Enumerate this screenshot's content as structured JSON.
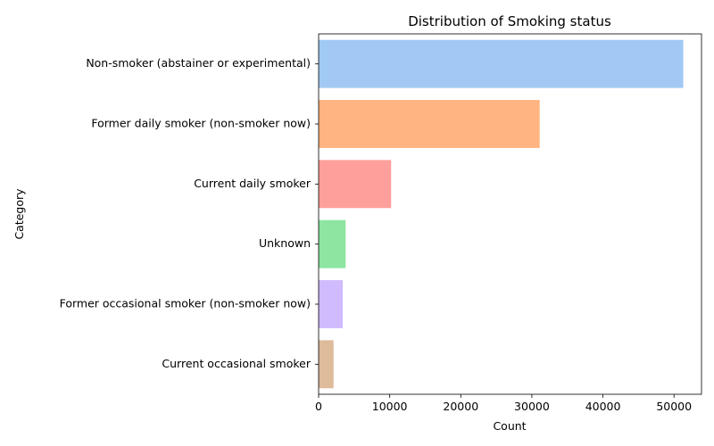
{
  "chart_data": {
    "type": "bar",
    "orientation": "horizontal",
    "title": "Distribution of Smoking status",
    "xlabel": "Count",
    "ylabel": "Category",
    "categories": [
      "Non-smoker (abstainer or experimental)",
      "Former daily smoker (non-smoker now)",
      "Current daily smoker",
      "Unknown",
      "Former occasional smoker (non-smoker now)",
      "Current occasional smoker"
    ],
    "values": [
      51300,
      31100,
      10200,
      3800,
      3400,
      2100
    ],
    "colors": [
      "#a1c9f4",
      "#ffb482",
      "#ff9f9b",
      "#8de5a1",
      "#d0bbff",
      "#debb9b"
    ],
    "xlim": [
      0,
      53865
    ],
    "xticks": [
      0,
      10000,
      20000,
      30000,
      40000,
      50000
    ],
    "xtick_labels": [
      "0",
      "10000",
      "20000",
      "30000",
      "40000",
      "50000"
    ],
    "grid": false,
    "legend": "none"
  }
}
